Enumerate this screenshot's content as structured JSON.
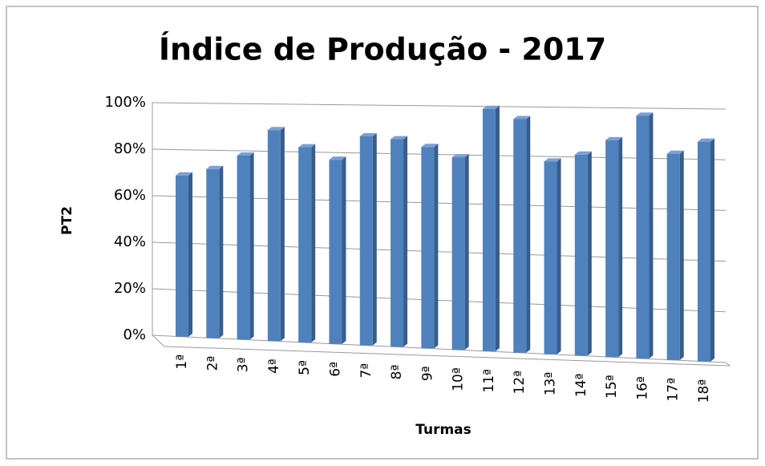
{
  "chart_data": {
    "type": "bar3d",
    "title": "Índice de Produção - 2017",
    "x_label": "Turmas",
    "y_label": "PT2",
    "categories": [
      "1ª",
      "2ª",
      "3ª",
      "4ª",
      "5ª",
      "6ª",
      "7ª",
      "8ª",
      "9ª",
      "10ª",
      "11ª",
      "12ª",
      "13ª",
      "14ª",
      "15ª",
      "16ª",
      "17ª",
      "18ª"
    ],
    "values": [
      69,
      72,
      78,
      89,
      82,
      77,
      87,
      86,
      83,
      79,
      99,
      95,
      78,
      81,
      87,
      97,
      82,
      87
    ],
    "color": "#4f81bd",
    "ylim": [
      0,
      100
    ],
    "yticks": [
      {
        "value": 0,
        "label": "0%"
      },
      {
        "value": 20,
        "label": "20%"
      },
      {
        "value": 40,
        "label": "40%"
      },
      {
        "value": 60,
        "label": "60%"
      },
      {
        "value": 80,
        "label": "80%"
      },
      {
        "value": 100,
        "label": "100%"
      }
    ],
    "grid": true
  }
}
